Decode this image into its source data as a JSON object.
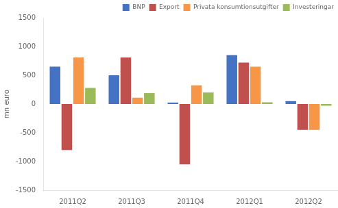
{
  "chart_data": {
    "type": "bar",
    "categories": [
      "2011Q2",
      "2011Q3",
      "2011Q4",
      "2012Q1",
      "2012Q2"
    ],
    "series": [
      {
        "name": "BNP",
        "color": "#4472C4",
        "values": [
          650,
          500,
          25,
          850,
          50
        ]
      },
      {
        "name": "Export",
        "color": "#C0504D",
        "values": [
          -800,
          810,
          -1050,
          720,
          -450
        ]
      },
      {
        "name": "Privata konsumtionsutgifter",
        "color": "#F79646",
        "values": [
          810,
          110,
          325,
          650,
          -450
        ]
      },
      {
        "name": "Investeringar",
        "color": "#9BBB59",
        "values": [
          280,
          190,
          200,
          30,
          -30
        ]
      }
    ],
    "ylabel": "mn euro",
    "ylim": [
      -1500,
      1500
    ],
    "yticks": [
      -1500,
      -1000,
      -500,
      0,
      500,
      1000,
      1500
    ],
    "grid": false,
    "legend": "upper right"
  }
}
